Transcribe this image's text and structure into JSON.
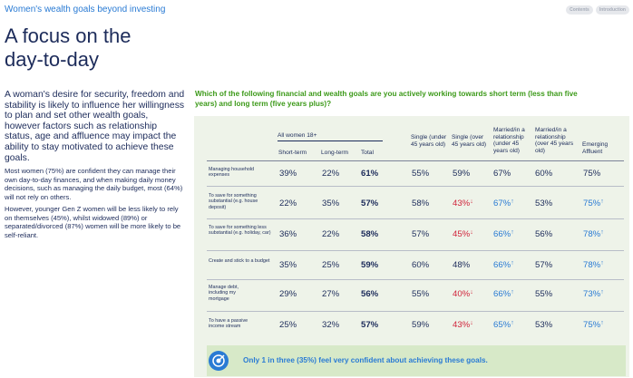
{
  "header": {
    "section_link": "Women's wealth goals beyond investing"
  },
  "nav": {
    "contents": "Contents",
    "introduction": "Introduction"
  },
  "title": {
    "line1": "A focus on the",
    "line2": "day-to-day"
  },
  "lead": "A woman's desire for security, freedom and stability is likely to influence her willingness to plan and set other wealth goals, however factors such as relationship status, age and affluence may impact the ability to stay motivated to achieve these goals.",
  "paragraphs": [
    "Most women (75%) are confident they can manage their own day-to-day finances, and when making daily money decisions, such as managing the daily budget, most (64%) will not rely on others.",
    "However, younger Gen Z women will be less likely to rely on themselves (45%), whilst widowed (89%) or separated/divorced (87%) women will be more likely to be self-reliant."
  ],
  "question": "Which of the following financial and wealth goals are you actively working towards short term (less than five years) and long term (five years plus)?",
  "table": {
    "group_header": "All women 18+",
    "columns": [
      "Short-term",
      "Long-term",
      "Total",
      "Single (under 45 years old)",
      "Single (over 45 years old)",
      "Married/in a relationship (under 45 years old)",
      "Married/in a relationship (over 45 years old)",
      "Emerging Affluent"
    ],
    "rows": [
      {
        "label": "Managing household expenses",
        "values": [
          "39%",
          "22%",
          "61%",
          "55%",
          "59%",
          "67%",
          "60%",
          "75%"
        ],
        "flags": [
          "",
          "",
          "",
          "",
          "",
          "",
          "",
          ""
        ]
      },
      {
        "label": "To save for something substantial (e.g. house deposit)",
        "values": [
          "22%",
          "35%",
          "57%",
          "58%",
          "43%",
          "67%",
          "53%",
          "75%"
        ],
        "flags": [
          "",
          "",
          "",
          "",
          "down",
          "up",
          "",
          "up"
        ]
      },
      {
        "label": "To save for something less substantial (e.g. holiday, car)",
        "values": [
          "36%",
          "22%",
          "58%",
          "57%",
          "45%",
          "66%",
          "56%",
          "78%"
        ],
        "flags": [
          "",
          "",
          "",
          "",
          "down",
          "up",
          "",
          "up"
        ]
      },
      {
        "label": "Create and stick to a budget",
        "values": [
          "35%",
          "25%",
          "59%",
          "60%",
          "48%",
          "66%",
          "57%",
          "78%"
        ],
        "flags": [
          "",
          "",
          "",
          "",
          "",
          "up",
          "",
          "up"
        ]
      },
      {
        "label": "Manage debt, including my mortgage",
        "values": [
          "29%",
          "27%",
          "56%",
          "55%",
          "40%",
          "66%",
          "55%",
          "73%"
        ],
        "flags": [
          "",
          "",
          "",
          "",
          "down",
          "up",
          "",
          "up"
        ]
      },
      {
        "label": "To have a passive income stream",
        "values": [
          "25%",
          "32%",
          "57%",
          "59%",
          "43%",
          "65%",
          "53%",
          "75%"
        ],
        "flags": [
          "",
          "",
          "",
          "",
          "down",
          "up",
          "",
          "up"
        ]
      }
    ]
  },
  "footer": {
    "text": "Only 1 in three (35%) feel very confident about achieving these goals."
  },
  "colors": {
    "navy": "#1c2b5a",
    "green": "#3d9a1a",
    "blue": "#2a7bd4",
    "red": "#d0243b",
    "panel": "#eef3e9",
    "footer": "#d7e9c8"
  }
}
